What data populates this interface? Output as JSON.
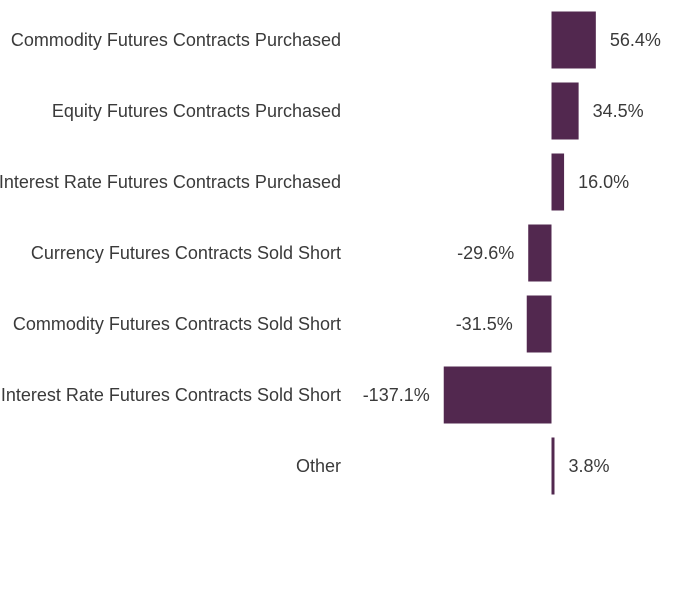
{
  "chart_data": {
    "type": "bar",
    "orientation": "horizontal",
    "categories": [
      "Commodity Futures Contracts Purchased",
      "Equity Futures Contracts Purchased",
      "Interest Rate Futures Contracts Purchased",
      "Currency Futures Contracts Sold Short",
      "Commodity Futures Contracts Sold Short",
      "Interest Rate Futures Contracts Sold Short",
      "Other"
    ],
    "values": [
      56.4,
      34.5,
      16.0,
      -29.6,
      -31.5,
      -137.1,
      3.8
    ],
    "value_labels": [
      "56.4%",
      "34.5%",
      "16.0%",
      "-29.6%",
      "-31.5%",
      "-137.1%",
      "3.8%"
    ],
    "title": "",
    "xlabel": "",
    "ylabel": "",
    "xlim": [
      -137.1,
      56.4
    ],
    "grid": false,
    "legend": "none",
    "bar_color": "#52284f",
    "text_color": "#3a3a3a"
  }
}
